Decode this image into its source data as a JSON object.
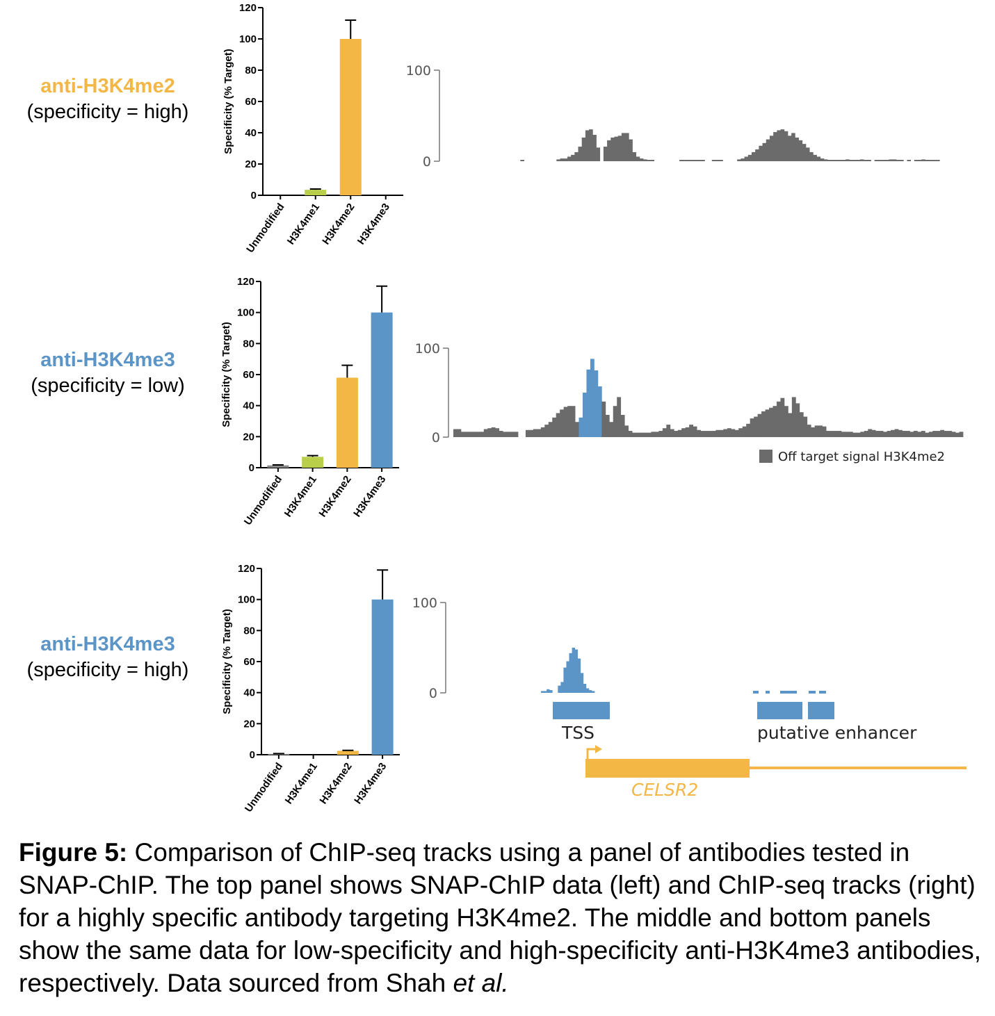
{
  "colors": {
    "unmodified": "#888888",
    "h3k4me1": "#b9cf4a",
    "h3k4me2": "#f2b744",
    "h3k4me3": "#5b95c8",
    "off_target": "#6b6b6b",
    "gene": "#f2b744",
    "enhancer": "#5b95c8"
  },
  "panels": [
    {
      "antibody": "anti-H3K4me2",
      "specificity_text": "(specificity = high)",
      "antibody_color": "#f2b744"
    },
    {
      "antibody": "anti-H3K4me3",
      "specificity_text": "(specificity = low)",
      "antibody_color": "#5b95c8"
    },
    {
      "antibody": "anti-H3K4me3",
      "specificity_text": "(specificity = high)",
      "antibody_color": "#5b95c8"
    }
  ],
  "chart_data": [
    {
      "type": "bar",
      "ylabel": "Specificity (% Target)",
      "ylim": [
        0,
        120
      ],
      "yticks": [
        "0",
        "20",
        "40",
        "60",
        "80",
        "100",
        "120"
      ],
      "categories": [
        "Unmodified",
        "H3K4me1",
        "H3K4me2",
        "H3K4me3"
      ],
      "values": [
        0,
        3.5,
        100,
        0
      ],
      "errors": [
        0,
        0.5,
        12,
        0
      ]
    },
    {
      "type": "area",
      "ytick_labels": [
        "100",
        "0"
      ],
      "ylim": [
        0,
        100
      ],
      "series": [
        {
          "values": [
            0,
            0,
            0,
            0,
            0,
            0,
            0,
            0,
            0,
            0,
            0,
            0,
            1,
            0,
            0,
            0,
            0,
            0,
            0,
            0,
            0,
            0,
            2,
            3,
            3,
            5,
            7,
            10,
            16,
            26,
            34,
            35,
            29,
            15,
            0,
            16,
            23,
            26,
            27,
            28,
            31,
            31,
            24,
            10,
            5,
            3,
            2,
            1,
            1,
            0,
            0,
            0,
            0,
            0,
            0,
            0,
            1,
            1,
            1,
            1,
            1,
            1,
            1,
            0,
            0,
            1,
            1,
            1,
            0,
            0,
            0,
            0,
            2,
            3,
            5,
            7,
            10,
            13,
            17,
            20,
            24,
            28,
            32,
            34,
            35,
            33,
            28,
            31,
            26,
            23,
            19,
            15,
            10,
            7,
            5,
            3,
            2,
            1,
            1,
            1,
            1,
            1,
            2,
            1,
            1,
            1,
            2,
            1,
            1,
            0,
            1,
            1,
            1,
            1,
            2,
            2,
            1,
            1,
            0,
            1,
            0,
            1,
            1,
            2,
            1,
            1,
            1,
            1,
            0,
            0,
            0,
            0
          ]
        }
      ]
    },
    {
      "type": "bar",
      "ylabel": "Specificity (% Target)",
      "ylim": [
        0,
        120
      ],
      "yticks": [
        "0",
        "20",
        "40",
        "60",
        "80",
        "100",
        "120"
      ],
      "categories": [
        "Unmodified",
        "H3K4me1",
        "H3K4me2",
        "H3K4me3"
      ],
      "values": [
        1.5,
        7,
        58,
        100
      ],
      "errors": [
        0.3,
        0.8,
        8,
        17
      ]
    },
    {
      "type": "area",
      "ytick_labels": [
        "100",
        "0"
      ],
      "ylim": [
        0,
        100
      ],
      "legend": "Off target signal H3K4me2",
      "series": [
        {
          "values": [
            9,
            9,
            6,
            6,
            6,
            6,
            6,
            6,
            9,
            10,
            11,
            10,
            7,
            6,
            6,
            6,
            6,
            0,
            0,
            8,
            8,
            9,
            9,
            11,
            14,
            17,
            22,
            27,
            31,
            34,
            35,
            35,
            17,
            22,
            50,
            76,
            88,
            75,
            57,
            40,
            25,
            17,
            35,
            45,
            25,
            13,
            7,
            5,
            5,
            5,
            5,
            5,
            6,
            6,
            7,
            10,
            14,
            9,
            7,
            8,
            10,
            11,
            14,
            12,
            8,
            7,
            7,
            7,
            7,
            8,
            8,
            9,
            10,
            9,
            8,
            10,
            12,
            15,
            21,
            23,
            26,
            29,
            31,
            33,
            35,
            40,
            44,
            35,
            27,
            45,
            38,
            28,
            23,
            14,
            11,
            13,
            13,
            12,
            7,
            7,
            7,
            7,
            6,
            6,
            6,
            5,
            5,
            6,
            7,
            9,
            8,
            7,
            7,
            6,
            7,
            8,
            9,
            8,
            7,
            7,
            6,
            7,
            6,
            7,
            5,
            6,
            7,
            7,
            8,
            7,
            7,
            6,
            5,
            6
          ]
        }
      ]
    },
    {
      "type": "bar",
      "ylabel": "Specificity (% Target)",
      "ylim": [
        0,
        120
      ],
      "yticks": [
        "0",
        "20",
        "40",
        "60",
        "80",
        "100",
        "120"
      ],
      "categories": [
        "Unmodified",
        "H3K4me1",
        "H3K4me2",
        "H3K4me3"
      ],
      "values": [
        0.5,
        0,
        2.5,
        100
      ],
      "errors": [
        0.2,
        0,
        0.3,
        19
      ]
    },
    {
      "type": "area",
      "ytick_labels": [
        "100",
        "0"
      ],
      "ylim": [
        0,
        100
      ],
      "series": [
        {
          "values": [
            2,
            2,
            4,
            3,
            0,
            0,
            8,
            12,
            28,
            35,
            44,
            50,
            48,
            38,
            22,
            10,
            5,
            3,
            2
          ]
        }
      ],
      "regions": [
        "TSS",
        "putative enhancer"
      ],
      "gene": "CELSR2"
    }
  ],
  "caption": {
    "bold": "Figure 5:",
    "text": " Comparison of ChIP-seq tracks using a panel of antibodies tested in SNAP-ChIP. The top panel shows SNAP-ChIP data (left) and ChIP-seq tracks (right) for a highly specific antibody targeting H3K4me2. The middle and bottom panels show the same data for low-specificity and high-specificity anti-H3K4me3 antibodies, respectively. Data sourced from Shah ",
    "italic": "et al."
  }
}
